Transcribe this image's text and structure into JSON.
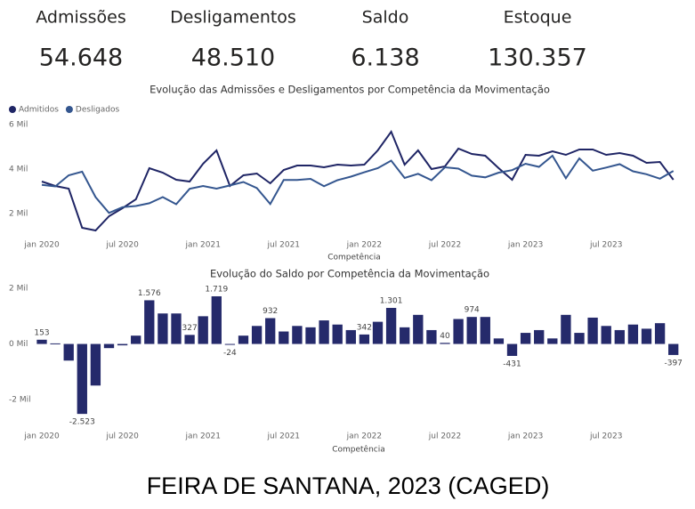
{
  "kpis": [
    {
      "label": "Admissões",
      "value": "54.648"
    },
    {
      "label": "Desligamentos",
      "value": "48.510"
    },
    {
      "label": "Saldo",
      "value": "6.138"
    },
    {
      "label": "Estoque",
      "value": "130.357"
    }
  ],
  "chart_data": [
    {
      "type": "line",
      "title": "Evolução das Admissões e Desligamentos por Competência da Movimentação",
      "x_label": "Competência",
      "categories": [
        "jan 2020",
        null,
        null,
        null,
        null,
        null,
        "jul 2020",
        null,
        null,
        null,
        null,
        null,
        "jan 2021",
        null,
        null,
        null,
        null,
        null,
        "jul 2021",
        null,
        null,
        null,
        null,
        null,
        "jan 2022",
        null,
        null,
        null,
        null,
        null,
        "jul 2022",
        null,
        null,
        null,
        null,
        null,
        "jan 2023",
        null,
        null,
        null,
        null,
        null,
        "jul 2023",
        null,
        null,
        null,
        null,
        null
      ],
      "series": [
        {
          "name": "Admitidos",
          "color": "#1f2565",
          "values": [
            3440,
            3240,
            3120,
            1360,
            1240,
            1880,
            2240,
            2640,
            4040,
            3840,
            3520,
            3440,
            4240,
            4840,
            3240,
            3720,
            3800,
            3360,
            3960,
            4160,
            4160,
            4080,
            4200,
            4160,
            4200,
            4840,
            5680,
            4200,
            4840,
            4000,
            4120,
            4920,
            4680,
            4600,
            4040,
            3520,
            4640,
            4600,
            4800,
            4640,
            4880,
            4880,
            4640,
            4720,
            4600,
            4280,
            4320,
            3520
          ]
        },
        {
          "name": "Desligados",
          "color": "#34568f",
          "values": [
            3287,
            3220,
            3720,
            3883,
            2740,
            2030,
            2290,
            2340,
            2464,
            2740,
            2420,
            3113,
            3240,
            3121,
            3264,
            3420,
            3150,
            2428,
            3510,
            3510,
            3560,
            3230,
            3500,
            3660,
            3858,
            4040,
            4379,
            3600,
            3790,
            3500,
            4080,
            4020,
            3706,
            3626,
            3840,
            3951,
            4240,
            4100,
            4600,
            3590,
            4480,
            3930,
            4070,
            4220,
            3900,
            3770,
            3570,
            3917
          ]
        }
      ],
      "ylim": [
        1000,
        6200
      ],
      "yticks": [
        {
          "value": 2000,
          "label": "2 Mil"
        },
        {
          "value": 4000,
          "label": "4 Mil"
        },
        {
          "value": 6000,
          "label": "6 Mil"
        }
      ],
      "grid": false,
      "legend": "top-left"
    },
    {
      "type": "bar",
      "title": "Evolução do Saldo por Competência da Movimentação",
      "x_label": "Competência",
      "color": "#252a6b",
      "categories": [
        "jan 2020",
        null,
        null,
        null,
        null,
        null,
        "jul 2020",
        null,
        null,
        null,
        null,
        null,
        "jan 2021",
        null,
        null,
        null,
        null,
        null,
        "jul 2021",
        null,
        null,
        null,
        null,
        null,
        "jan 2022",
        null,
        null,
        null,
        null,
        null,
        "jul 2022",
        null,
        null,
        null,
        null,
        null,
        "jan 2023",
        null,
        null,
        null,
        null,
        null,
        "jul 2023",
        null,
        null,
        null,
        null,
        null
      ],
      "values": [
        153,
        20,
        -600,
        -2523,
        -1500,
        -150,
        -50,
        300,
        1576,
        1100,
        1100,
        327,
        1000,
        1719,
        -24,
        300,
        650,
        932,
        450,
        650,
        600,
        850,
        700,
        500,
        342,
        800,
        1301,
        600,
        1050,
        500,
        40,
        900,
        974,
        974,
        200,
        -431,
        400,
        500,
        200,
        1050,
        400,
        950,
        650,
        500,
        700,
        550,
        750,
        -397
      ],
      "value_labels": [
        "153",
        null,
        null,
        "-2.523",
        null,
        null,
        null,
        null,
        "1.576",
        null,
        null,
        "327",
        null,
        "1.719",
        "-24",
        null,
        null,
        "932",
        null,
        null,
        null,
        null,
        null,
        null,
        "342",
        null,
        "1.301",
        null,
        null,
        null,
        "40",
        null,
        "974",
        null,
        null,
        "-431",
        null,
        null,
        null,
        null,
        null,
        null,
        null,
        null,
        null,
        null,
        null,
        "-397"
      ],
      "ylim": [
        -3000,
        2200
      ],
      "yticks": [
        {
          "value": -2000,
          "label": "-2 Mil"
        },
        {
          "value": 0,
          "label": "0 Mil"
        },
        {
          "value": 2000,
          "label": "2 Mil"
        }
      ],
      "grid": false
    }
  ],
  "caption": "FEIRA DE SANTANA, 2023 (CAGED)"
}
